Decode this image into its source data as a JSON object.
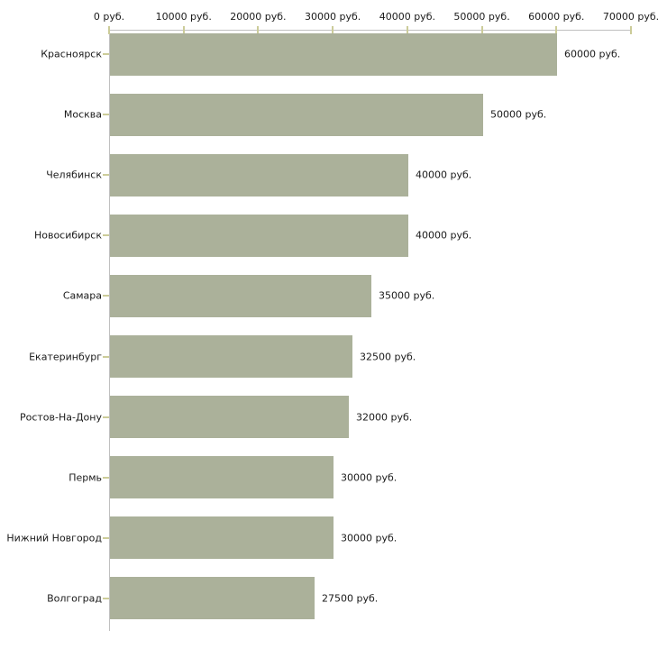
{
  "chart_data": {
    "type": "bar",
    "orientation": "horizontal",
    "title": "",
    "xlabel": "",
    "ylabel": "",
    "unit": "руб.",
    "categories": [
      "Красноярск",
      "Москва",
      "Челябинск",
      "Новосибирск",
      "Самара",
      "Екатеринбург",
      "Ростов-На-Дону",
      "Пермь",
      "Нижний Новгород",
      "Волгоград"
    ],
    "values": [
      60000,
      50000,
      40000,
      40000,
      35000,
      32500,
      32000,
      30000,
      30000,
      27500
    ],
    "value_labels": [
      "60000 руб.",
      "50000 руб.",
      "40000 руб.",
      "40000 руб.",
      "35000 руб.",
      "32500 руб.",
      "32000 руб.",
      "30000 руб.",
      "30000 руб.",
      "27500 руб."
    ],
    "x_ticks": [
      0,
      10000,
      20000,
      30000,
      40000,
      50000,
      60000,
      70000
    ],
    "x_tick_labels": [
      "0 руб.",
      "10000 руб.",
      "20000 руб.",
      "30000 руб.",
      "40000 руб.",
      "50000 руб.",
      "60000 руб.",
      "70000 руб."
    ],
    "xlim": [
      0,
      70000
    ],
    "grid": false,
    "legend": null,
    "colors": {
      "bar": "#abb19a",
      "axis": "#c0c0c0",
      "tick": "#cccc99",
      "text": "#1a1a1a",
      "background": "#ffffff"
    }
  }
}
